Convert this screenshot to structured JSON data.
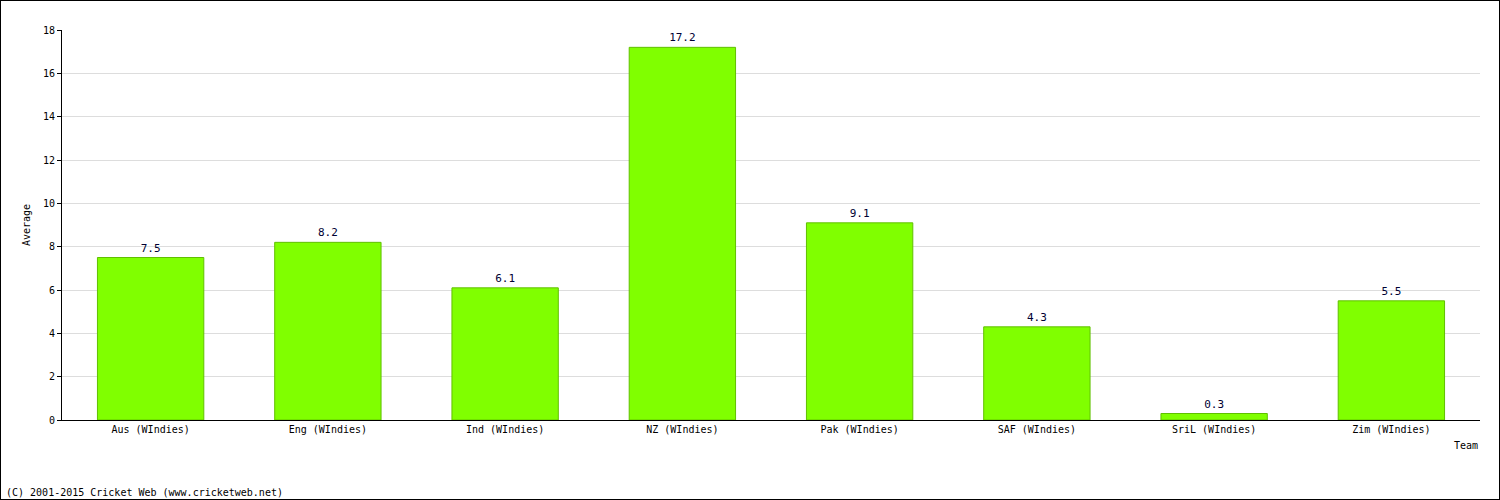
{
  "chart_data": {
    "type": "bar",
    "categories": [
      "Aus (WIndies)",
      "Eng (WIndies)",
      "Ind (WIndies)",
      "NZ (WIndies)",
      "Pak (WIndies)",
      "SAF (WIndies)",
      "SriL (WIndies)",
      "Zim (WIndies)"
    ],
    "values": [
      7.5,
      8.2,
      6.1,
      17.2,
      9.1,
      4.3,
      0.3,
      5.5
    ],
    "color": "#80ff00",
    "xlabel": "Team",
    "ylabel": "Average",
    "ylim": [
      0,
      18
    ],
    "yticks": [
      0,
      2,
      4,
      6,
      8,
      10,
      12,
      14,
      16,
      18
    ],
    "grid": true,
    "data_labels": true,
    "annotations": [
      "(C) 2001-2015 Cricket Web (www.cricketweb.net)"
    ]
  }
}
